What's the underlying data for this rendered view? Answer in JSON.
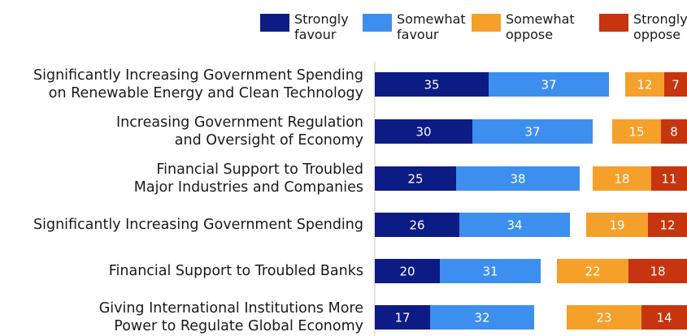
{
  "chart_data": {
    "type": "bar",
    "orientation": "horizontal-diverging",
    "title": "",
    "legend": [
      {
        "label": "Strongly\nfavour",
        "color": "#0d1b84"
      },
      {
        "label": "Somewhat\nfavour",
        "color": "#3d8fef"
      },
      {
        "label": "Somewhat\noppose",
        "color": "#f5a02a"
      },
      {
        "label": "Strongly\noppose",
        "color": "#c6350f"
      }
    ],
    "legend_position": "top-right",
    "categories": [
      "Significantly Increasing Government Spending\non Renewable Energy and Clean Technology",
      "Increasing Government Regulation\nand Oversight of Economy",
      "Financial Support to Troubled\nMajor Industries and Companies",
      "Significantly Increasing Government Spending",
      "Financial Support to Troubled Banks",
      "Giving International Institutions More\nPower to Regulate Global Economy"
    ],
    "series": [
      {
        "name": "Strongly favour",
        "values": [
          35,
          30,
          25,
          26,
          20,
          17
        ]
      },
      {
        "name": "Somewhat favour",
        "values": [
          37,
          37,
          38,
          34,
          31,
          32
        ]
      },
      {
        "name": "Somewhat oppose",
        "values": [
          12,
          15,
          18,
          19,
          22,
          23
        ]
      },
      {
        "name": "Strongly oppose",
        "values": [
          7,
          8,
          11,
          12,
          18,
          14
        ]
      }
    ]
  }
}
